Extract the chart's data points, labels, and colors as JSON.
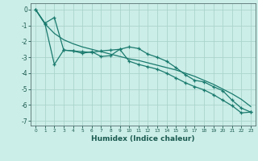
{
  "xlabel": "Humidex (Indice chaleur)",
  "background_color": "#cceee8",
  "grid_color": "#aad4cc",
  "line_color": "#1a7a6e",
  "xlim": [
    -0.5,
    23.5
  ],
  "ylim": [
    -7.3,
    0.4
  ],
  "yticks": [
    0,
    -1,
    -2,
    -3,
    -4,
    -5,
    -6,
    -7
  ],
  "xticks": [
    0,
    1,
    2,
    3,
    4,
    5,
    6,
    7,
    8,
    9,
    10,
    11,
    12,
    13,
    14,
    15,
    16,
    17,
    18,
    19,
    20,
    21,
    22,
    23
  ],
  "line1_x": [
    0,
    1,
    2,
    3,
    4,
    5,
    6,
    7,
    8,
    9,
    10,
    11,
    12,
    13,
    14,
    15,
    16,
    17,
    18,
    19,
    20,
    21,
    22,
    23
  ],
  "line1_y": [
    0.0,
    -0.9,
    -1.5,
    -1.9,
    -2.15,
    -2.35,
    -2.5,
    -2.65,
    -2.8,
    -2.95,
    -3.1,
    -3.2,
    -3.35,
    -3.5,
    -3.65,
    -3.8,
    -4.0,
    -4.2,
    -4.45,
    -4.7,
    -5.0,
    -5.3,
    -5.65,
    -6.1
  ],
  "line2_x": [
    0,
    1,
    2,
    3,
    4,
    5,
    6,
    7,
    8,
    9,
    10,
    11,
    12,
    13,
    14,
    15,
    16,
    17,
    18,
    19,
    20,
    21,
    22,
    23
  ],
  "line2_y": [
    0.0,
    -0.85,
    -0.5,
    -2.55,
    -2.6,
    -2.65,
    -2.7,
    -2.6,
    -2.55,
    -2.5,
    -2.35,
    -2.45,
    -2.8,
    -3.0,
    -3.25,
    -3.65,
    -4.1,
    -4.45,
    -4.55,
    -4.85,
    -5.1,
    -5.7,
    -6.2,
    -6.45
  ],
  "line3_x": [
    0,
    1,
    2,
    3,
    4,
    5,
    6,
    7,
    8,
    9,
    10,
    11,
    12,
    13,
    14,
    15,
    16,
    17,
    18,
    19,
    20,
    21,
    22,
    23
  ],
  "line3_y": [
    0.0,
    -0.9,
    -3.45,
    -2.55,
    -2.6,
    -2.75,
    -2.65,
    -2.95,
    -2.9,
    -2.5,
    -3.25,
    -3.45,
    -3.6,
    -3.75,
    -4.0,
    -4.3,
    -4.6,
    -4.85,
    -5.05,
    -5.35,
    -5.7,
    -6.05,
    -6.5,
    -6.45
  ]
}
